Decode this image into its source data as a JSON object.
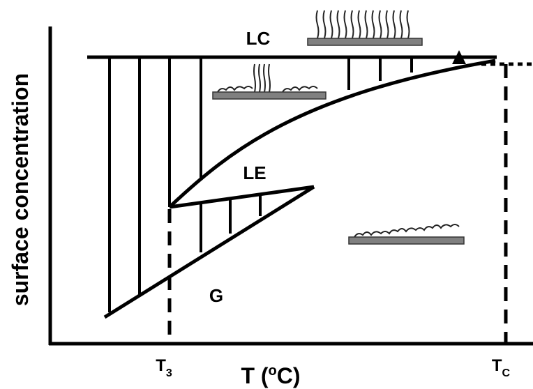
{
  "y_axis": {
    "label": "surface concentration"
  },
  "x_axis": {
    "label_parts": [
      "T (",
      "o",
      "C)"
    ]
  },
  "ticks": {
    "t3": [
      "T",
      "3"
    ],
    "tc": [
      "T",
      "C"
    ]
  },
  "phases": {
    "lc": "LC",
    "le": "LE",
    "g": "G"
  }
}
